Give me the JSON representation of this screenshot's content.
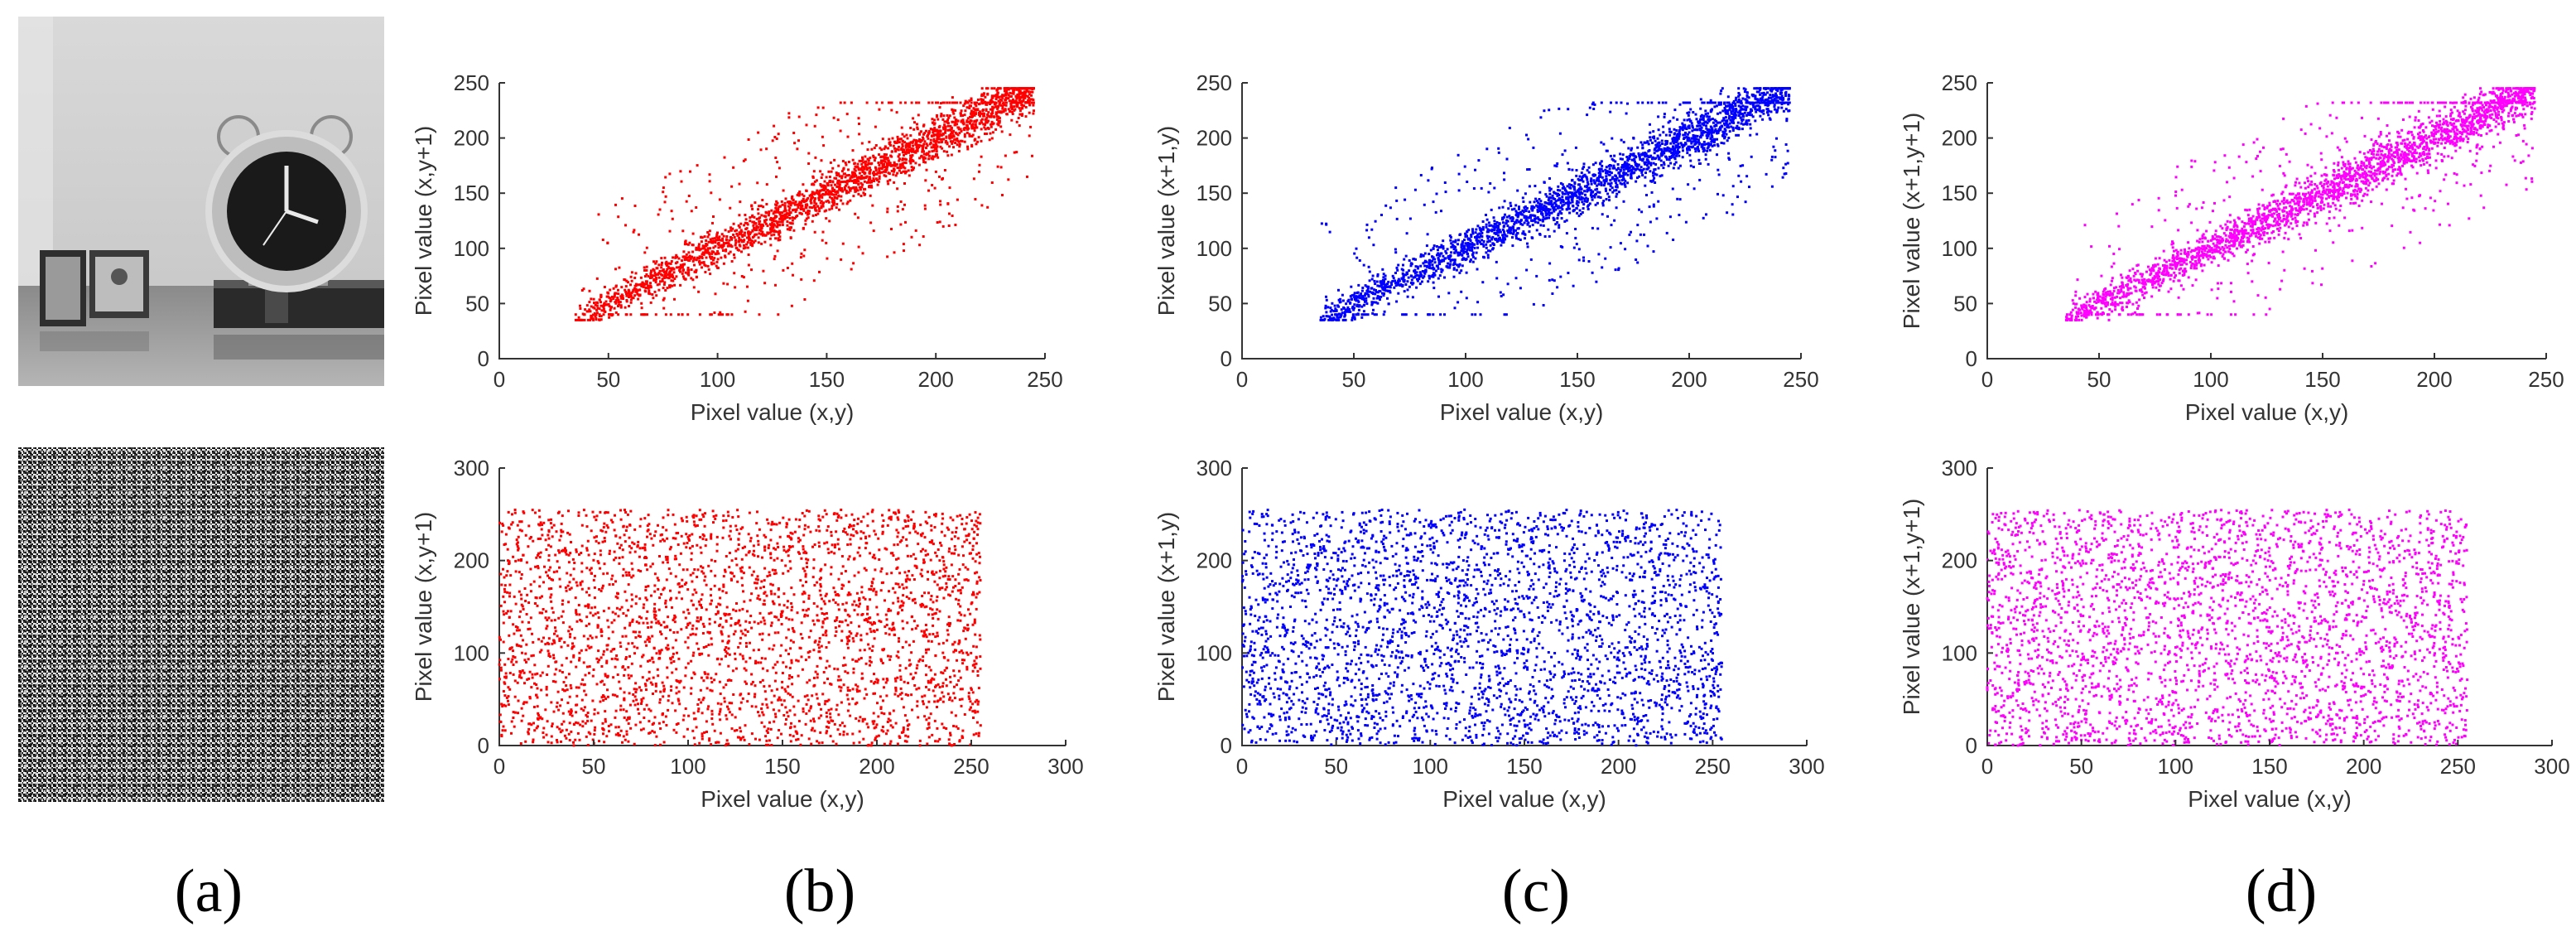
{
  "panel_labels": [
    "(a)",
    "(b)",
    "(c)",
    "(d)"
  ],
  "images": {
    "plain": "grayscale photo of an alarm clock, picture frames and books on a table",
    "cipher": "encrypted noise-like grayscale image"
  },
  "chart_data": [
    {
      "id": "b-plain",
      "type": "scatter",
      "panel": "(b)",
      "row": "plain",
      "color": "#ff0000",
      "pattern": "correlated",
      "xlabel": "Pixel value (x,y)",
      "ylabel": "Pixel value (x,y+1)",
      "xlim": [
        0,
        250
      ],
      "ylim": [
        0,
        250
      ],
      "xticks": [
        0,
        50,
        100,
        150,
        200,
        250
      ],
      "yticks": [
        0,
        50,
        100,
        150,
        200,
        250
      ],
      "data_range": [
        35,
        245
      ],
      "n_points": 2600,
      "seed": 11
    },
    {
      "id": "c-plain",
      "type": "scatter",
      "panel": "(c)",
      "row": "plain",
      "color": "#0000ff",
      "pattern": "correlated",
      "xlabel": "Pixel value (x,y)",
      "ylabel": "Pixel value (x+1,y)",
      "xlim": [
        0,
        250
      ],
      "ylim": [
        0,
        250
      ],
      "xticks": [
        0,
        50,
        100,
        150,
        200,
        250
      ],
      "yticks": [
        0,
        50,
        100,
        150,
        200,
        250
      ],
      "data_range": [
        35,
        245
      ],
      "n_points": 2600,
      "seed": 23
    },
    {
      "id": "d-plain",
      "type": "scatter",
      "panel": "(d)",
      "row": "plain",
      "color": "#ff00ff",
      "pattern": "correlated",
      "xlabel": "Pixel value (x,y)",
      "ylabel": "Pixel value (x+1,y+1)",
      "xlim": [
        0,
        250
      ],
      "ylim": [
        0,
        250
      ],
      "xticks": [
        0,
        50,
        100,
        150,
        200,
        250
      ],
      "yticks": [
        0,
        50,
        100,
        150,
        200,
        250
      ],
      "data_range": [
        35,
        245
      ],
      "n_points": 2600,
      "seed": 37
    },
    {
      "id": "b-cipher",
      "type": "scatter",
      "panel": "(b)",
      "row": "cipher",
      "color": "#ff0000",
      "pattern": "uniform",
      "xlabel": "Pixel value (x,y)",
      "ylabel": "Pixel value (x,y+1)",
      "xlim": [
        0,
        300
      ],
      "ylim": [
        0,
        300
      ],
      "xticks": [
        0,
        50,
        100,
        150,
        200,
        250,
        300
      ],
      "yticks": [
        0,
        100,
        200,
        300
      ],
      "data_range": [
        0,
        255
      ],
      "n_points": 3000,
      "seed": 41
    },
    {
      "id": "c-cipher",
      "type": "scatter",
      "panel": "(c)",
      "row": "cipher",
      "color": "#0000ff",
      "pattern": "uniform",
      "xlabel": "Pixel value (x,y)",
      "ylabel": "Pixel value (x+1,y)",
      "xlim": [
        0,
        300
      ],
      "ylim": [
        0,
        300
      ],
      "xticks": [
        0,
        50,
        100,
        150,
        200,
        250,
        300
      ],
      "yticks": [
        0,
        100,
        200,
        300
      ],
      "data_range": [
        0,
        255
      ],
      "n_points": 3000,
      "seed": 53
    },
    {
      "id": "d-cipher",
      "type": "scatter",
      "panel": "(d)",
      "row": "cipher",
      "color": "#ff00ff",
      "pattern": "uniform",
      "xlabel": "Pixel value (x,y)",
      "ylabel": "Pixel value (x+1,y+1)",
      "xlim": [
        0,
        300
      ],
      "ylim": [
        0,
        300
      ],
      "xticks": [
        0,
        50,
        100,
        150,
        200,
        250,
        300
      ],
      "yticks": [
        0,
        100,
        200,
        300
      ],
      "data_range": [
        0,
        255
      ],
      "n_points": 3000,
      "seed": 67
    }
  ]
}
